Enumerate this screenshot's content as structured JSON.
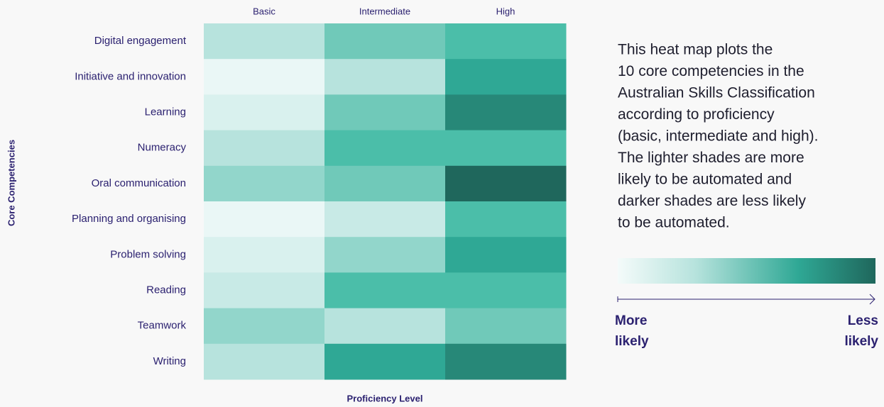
{
  "chart_data": {
    "type": "heatmap",
    "columns": [
      "Basic",
      "Intermediate",
      "High"
    ],
    "categories": [
      "Digital engagement",
      "Initiative and innovation",
      "Learning",
      "Numeracy",
      "Oral communication",
      "Planning and organising",
      "Problem solving",
      "Reading",
      "Teamwork",
      "Writing"
    ],
    "values": [
      [
        4,
        6,
        7
      ],
      [
        1,
        4,
        8
      ],
      [
        2,
        6,
        9
      ],
      [
        4,
        7,
        7
      ],
      [
        5,
        6,
        10
      ],
      [
        1,
        3,
        7
      ],
      [
        2,
        5,
        8
      ],
      [
        3,
        7,
        7
      ],
      [
        5,
        4,
        6
      ],
      [
        4,
        8,
        9
      ]
    ],
    "colorscale": [
      "#eaf7f6",
      "#d9f1ee",
      "#c8eae6",
      "#b7e3dd",
      "#92d6cb",
      "#70c9b9",
      "#4bbea9",
      "#2fa895",
      "#278878",
      "#1f675c"
    ],
    "ylabel": "Core Competencies",
    "xlabel": "Proficiency Level",
    "description": [
      "This heat map plots the",
      "10 core competencies in the",
      "Australian Skills Classification",
      "according to proficiency",
      "(basic, intermediate and high).",
      "The lighter shades are more",
      "likely to be automated and",
      "darker shades are less likely",
      "to be automated."
    ],
    "legend_low": [
      "More",
      "likely"
    ],
    "legend_high": [
      "Less",
      "likely"
    ]
  }
}
